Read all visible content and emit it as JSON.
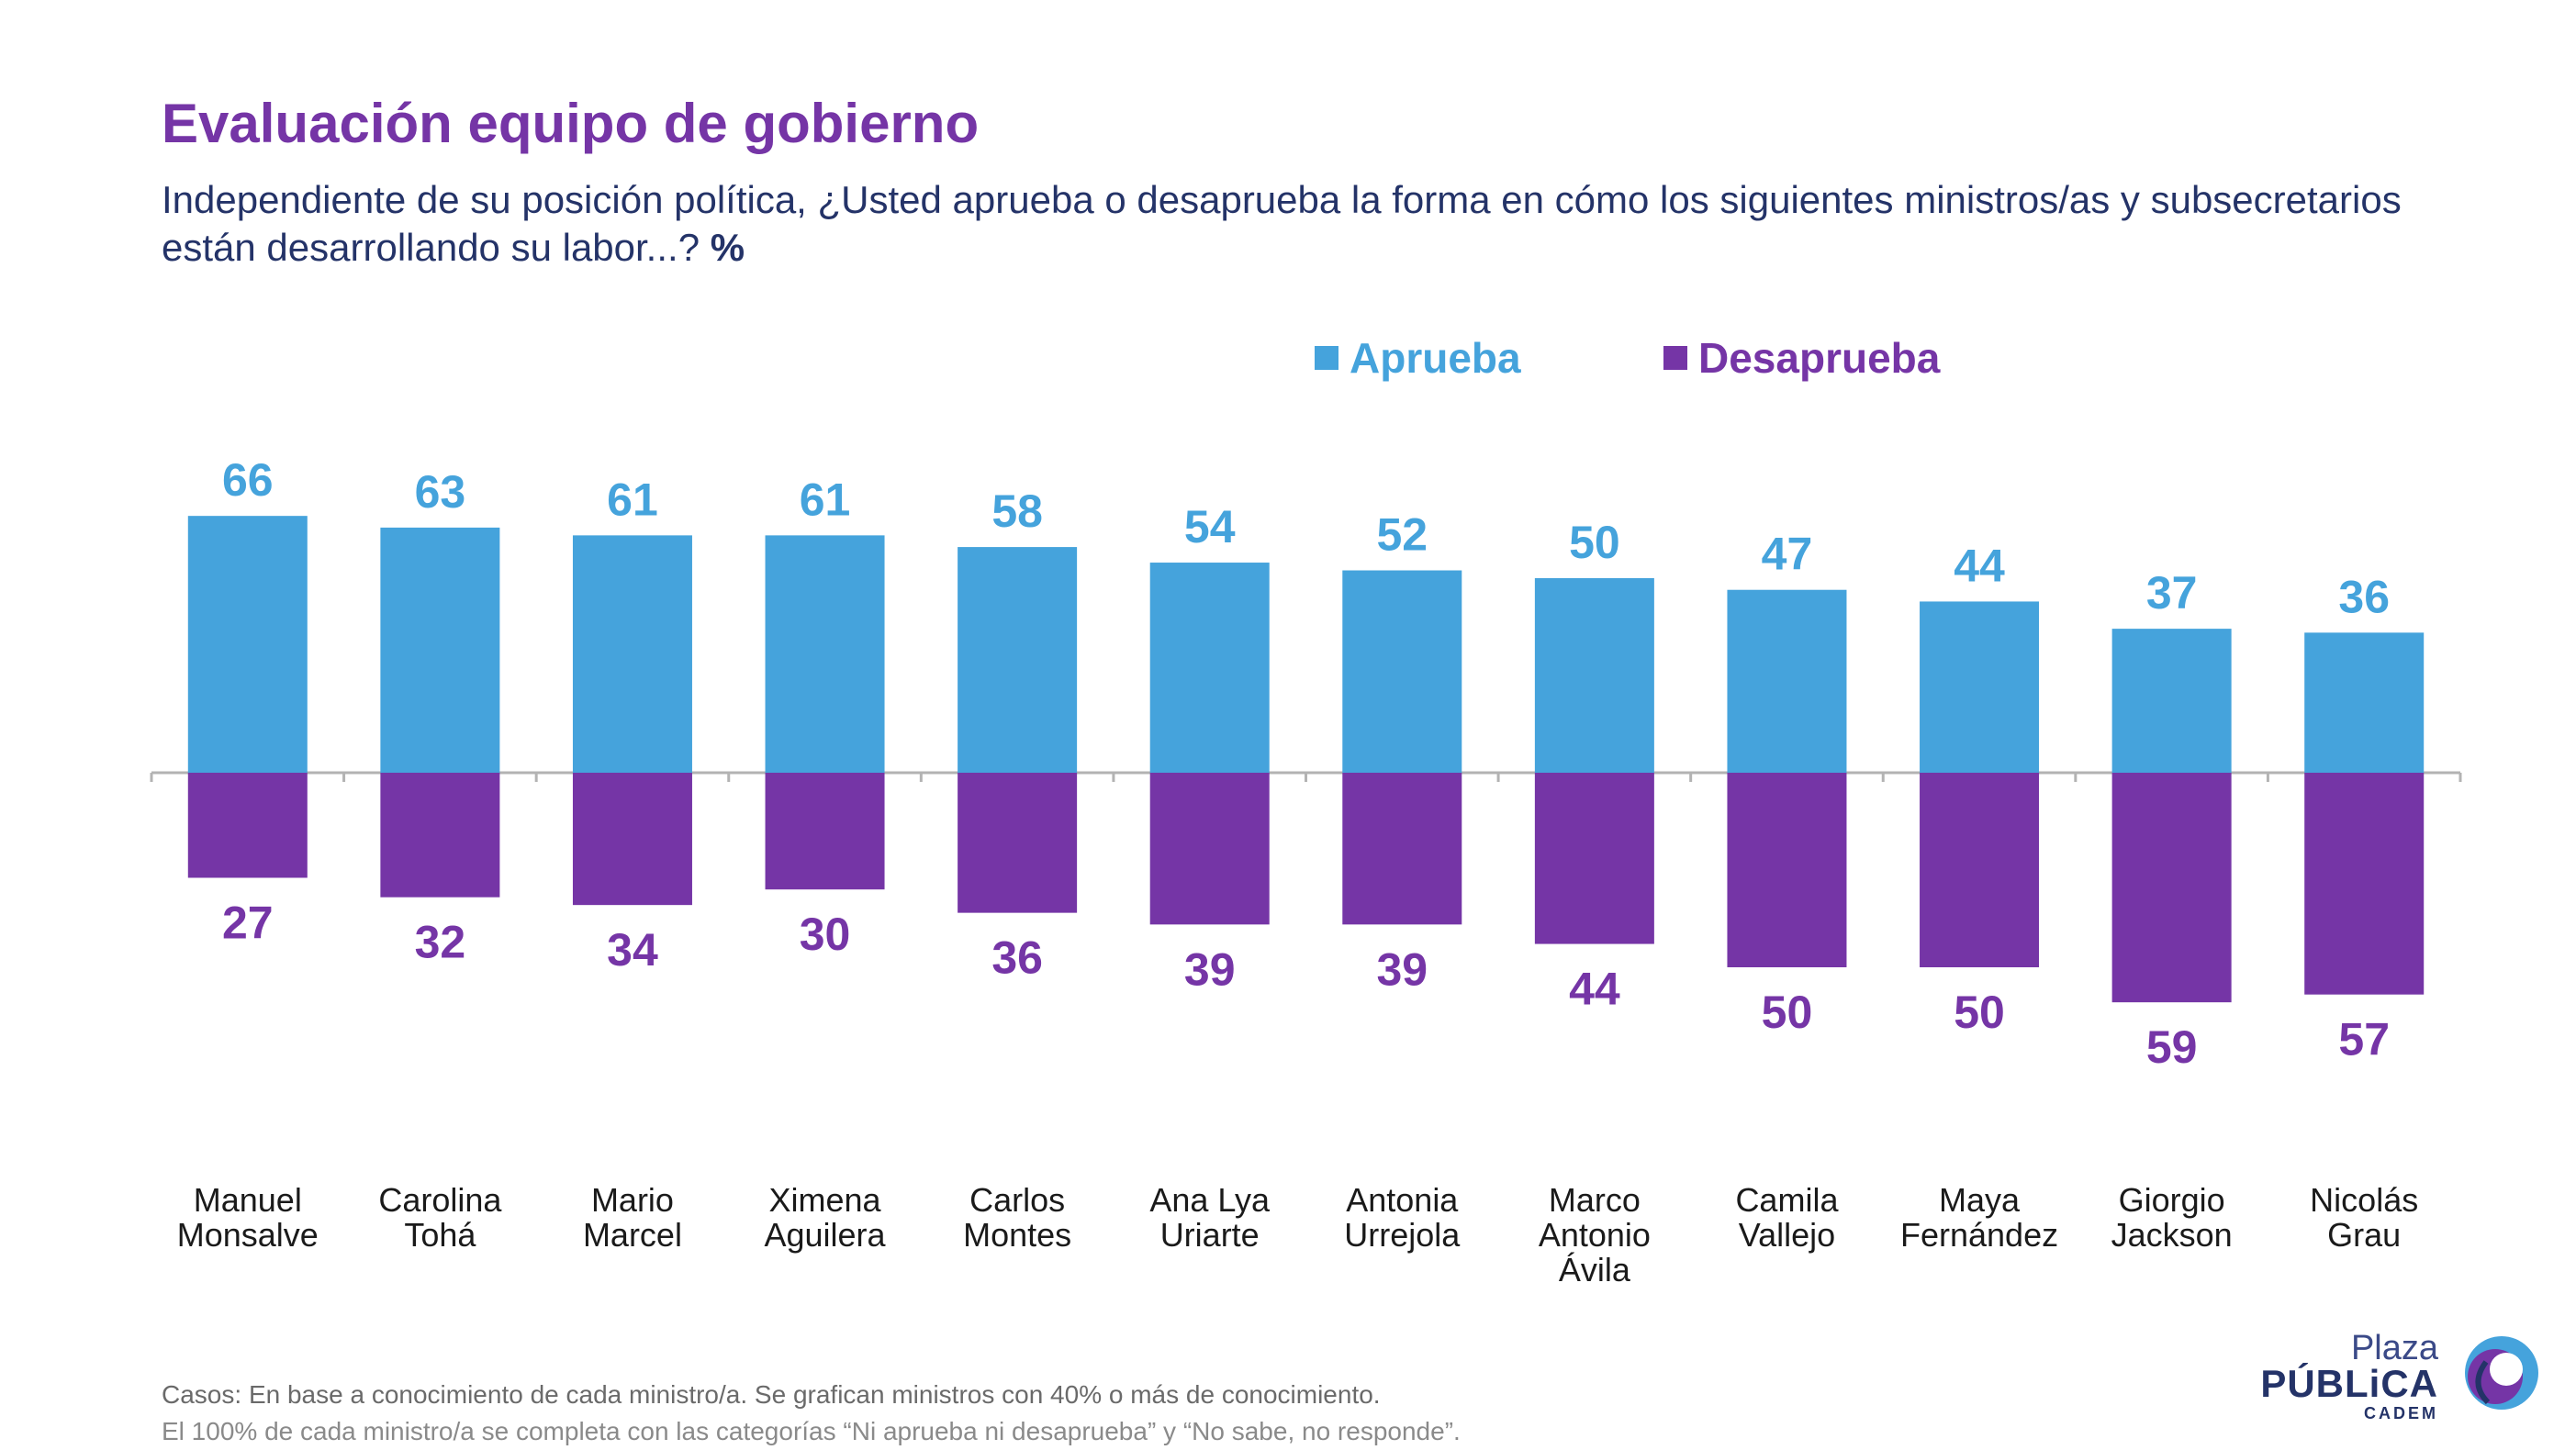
{
  "header": {
    "title": "Evaluación equipo de gobierno",
    "subtitle": "Independiente de su posición política, ¿Usted aprueba o desaprueba la forma en cómo los siguientes ministros/as y subsecretarios están desarrollando su labor...?",
    "unit": "%"
  },
  "chart_data": {
    "type": "bar",
    "title": "Evaluación equipo de gobierno",
    "categories": [
      [
        "Manuel",
        "Monsalve"
      ],
      [
        "Carolina",
        "Tohá"
      ],
      [
        "Mario",
        "Marcel"
      ],
      [
        "Ximena",
        "Aguilera"
      ],
      [
        "Carlos",
        "Montes"
      ],
      [
        "Ana Lya",
        "Uriarte"
      ],
      [
        "Antonia",
        "Urrejola"
      ],
      [
        "Marco",
        "Antonio",
        "Ávila"
      ],
      [
        "Camila",
        "Vallejo"
      ],
      [
        "Maya",
        "Fernández"
      ],
      [
        "Giorgio",
        "Jackson"
      ],
      [
        "Nicolás",
        "Grau"
      ]
    ],
    "series": [
      {
        "name": "Aprueba",
        "color": "#45a3dc",
        "direction": "up",
        "values": [
          66,
          63,
          61,
          61,
          58,
          54,
          52,
          50,
          47,
          44,
          37,
          36
        ]
      },
      {
        "name": "Desaprueba",
        "color": "#7535a6",
        "direction": "down",
        "values": [
          27,
          32,
          34,
          30,
          36,
          39,
          39,
          44,
          50,
          50,
          59,
          57
        ]
      }
    ],
    "legend": "top-right",
    "grid": false,
    "ylim": [
      -59,
      66
    ]
  },
  "footer": {
    "line1_label": "Casos:",
    "line1_text": "En base a conocimiento de cada ministro/a. Se grafican ministros con 40% o más de conocimiento.",
    "line2": "El 100% de cada ministro/a se completa con las categorías “Ni aprueba ni desaprueba” y “No sabe, no responde”."
  },
  "logo": {
    "line1": "Plaza",
    "line2": "PÚBLiCA",
    "line3": "CADEM"
  }
}
